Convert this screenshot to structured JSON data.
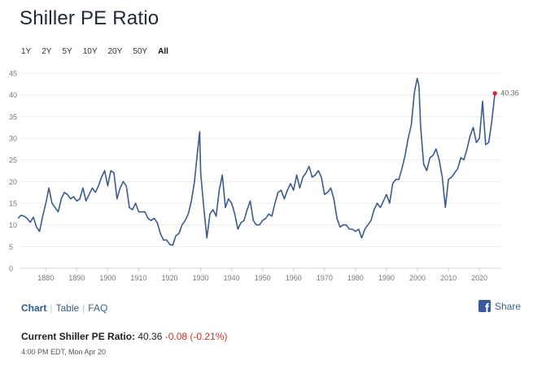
{
  "page": {
    "title": "Shiller PE Ratio"
  },
  "ranges": [
    "1Y",
    "2Y",
    "5Y",
    "10Y",
    "20Y",
    "50Y",
    "All"
  ],
  "active_range": "All",
  "nav": {
    "chart": "Chart",
    "table": "Table",
    "faq": "FAQ",
    "share": "Share"
  },
  "current": {
    "label": "Current Shiller PE Ratio:",
    "value": "40.36",
    "change": "-0.08 (-0.21%)",
    "timestamp": "4:00 PM EDT, Mon Apr 20"
  },
  "colors": {
    "line": "#3b5b8c",
    "marker": "#e0213a",
    "change": "#c0392b",
    "link": "#3a5f86"
  },
  "chart_data": {
    "type": "line",
    "title": "Shiller PE Ratio",
    "xlabel": "",
    "ylabel": "",
    "xlim": [
      1871,
      2026
    ],
    "ylim": [
      0,
      45
    ],
    "x_ticks": [
      1880,
      1890,
      1900,
      1910,
      1920,
      1930,
      1940,
      1950,
      1960,
      1970,
      1980,
      1990,
      2000,
      2010,
      2020
    ],
    "y_ticks": [
      0,
      5,
      10,
      15,
      20,
      25,
      30,
      35,
      40,
      45
    ],
    "grid": "horizontal",
    "last_value_label": "40.36",
    "series": [
      {
        "name": "Shiller PE Ratio",
        "x": [
          1871,
          1872,
          1873,
          1874,
          1875,
          1876,
          1877,
          1878,
          1879,
          1880,
          1881,
          1882,
          1883,
          1884,
          1885,
          1886,
          1887,
          1888,
          1889,
          1890,
          1891,
          1892,
          1893,
          1894,
          1895,
          1896,
          1897,
          1898,
          1899,
          1900,
          1901,
          1902,
          1903,
          1904,
          1905,
          1906,
          1907,
          1908,
          1909,
          1910,
          1911,
          1912,
          1913,
          1914,
          1915,
          1916,
          1917,
          1918,
          1919,
          1920,
          1921,
          1922,
          1923,
          1924,
          1925,
          1926,
          1927,
          1928,
          1929,
          1929.7,
          1930,
          1931,
          1932,
          1933,
          1934,
          1935,
          1936,
          1937,
          1938,
          1939,
          1940,
          1941,
          1942,
          1943,
          1944,
          1945,
          1946,
          1947,
          1948,
          1949,
          1950,
          1951,
          1952,
          1953,
          1954,
          1955,
          1956,
          1957,
          1958,
          1959,
          1960,
          1961,
          1962,
          1963,
          1964,
          1965,
          1966,
          1967,
          1968,
          1969,
          1970,
          1971,
          1972,
          1973,
          1974,
          1975,
          1976,
          1977,
          1978,
          1979,
          1980,
          1981,
          1982,
          1983,
          1984,
          1985,
          1986,
          1987,
          1988,
          1989,
          1990,
          1991,
          1992,
          1993,
          1994,
          1995,
          1996,
          1997,
          1998,
          1999,
          1999.9,
          2000.5,
          2001,
          2002,
          2003,
          2004,
          2005,
          2006,
          2007,
          2008,
          2009,
          2010,
          2011,
          2012,
          2013,
          2014,
          2015,
          2016,
          2017,
          2018,
          2019,
          2020,
          2021,
          2022,
          2023,
          2024,
          2025
        ],
        "values": [
          11.5,
          12.2,
          12.0,
          11.5,
          10.6,
          11.8,
          9.5,
          8.5,
          12.0,
          15.0,
          18.5,
          15.0,
          14.0,
          13.0,
          16.0,
          17.5,
          17.0,
          16.0,
          16.5,
          15.5,
          16.0,
          18.5,
          15.5,
          17.0,
          18.5,
          17.5,
          19.0,
          21.0,
          22.5,
          19.0,
          22.5,
          22.0,
          16.0,
          18.5,
          20.0,
          19.0,
          14.0,
          13.5,
          15.0,
          13.0,
          13.0,
          13.0,
          11.5,
          11.0,
          11.5,
          10.5,
          8.0,
          6.5,
          6.5,
          5.5,
          5.3,
          7.5,
          8.0,
          10.0,
          11.0,
          12.5,
          15.5,
          20.0,
          27.0,
          31.5,
          22.0,
          14.0,
          7.0,
          12.5,
          13.5,
          12.0,
          18.0,
          21.5,
          14.0,
          16.0,
          15.0,
          12.5,
          9.0,
          10.5,
          11.0,
          13.5,
          15.5,
          11.0,
          10.0,
          10.0,
          11.0,
          11.5,
          12.5,
          12.0,
          15.0,
          17.5,
          18.0,
          16.0,
          18.0,
          19.5,
          18.0,
          21.5,
          18.5,
          21.0,
          22.0,
          23.5,
          21.0,
          21.5,
          22.5,
          21.0,
          17.0,
          17.5,
          18.5,
          16.0,
          11.5,
          9.5,
          10.0,
          10.0,
          9.0,
          9.0,
          8.5,
          9.0,
          7.0,
          9.0,
          10.0,
          11.0,
          13.5,
          15.0,
          14.0,
          15.5,
          17.0,
          15.0,
          19.5,
          20.5,
          20.5,
          23.0,
          26.0,
          30.0,
          33.0,
          40.5,
          43.8,
          42.0,
          33.0,
          24.0,
          22.5,
          25.5,
          26.0,
          27.5,
          25.0,
          21.0,
          14.0,
          20.5,
          21.0,
          22.0,
          23.0,
          25.5,
          25.0,
          27.5,
          30.5,
          32.5,
          29.0,
          30.0,
          38.5,
          28.5,
          29.0,
          34.0,
          40.36
        ]
      }
    ]
  }
}
